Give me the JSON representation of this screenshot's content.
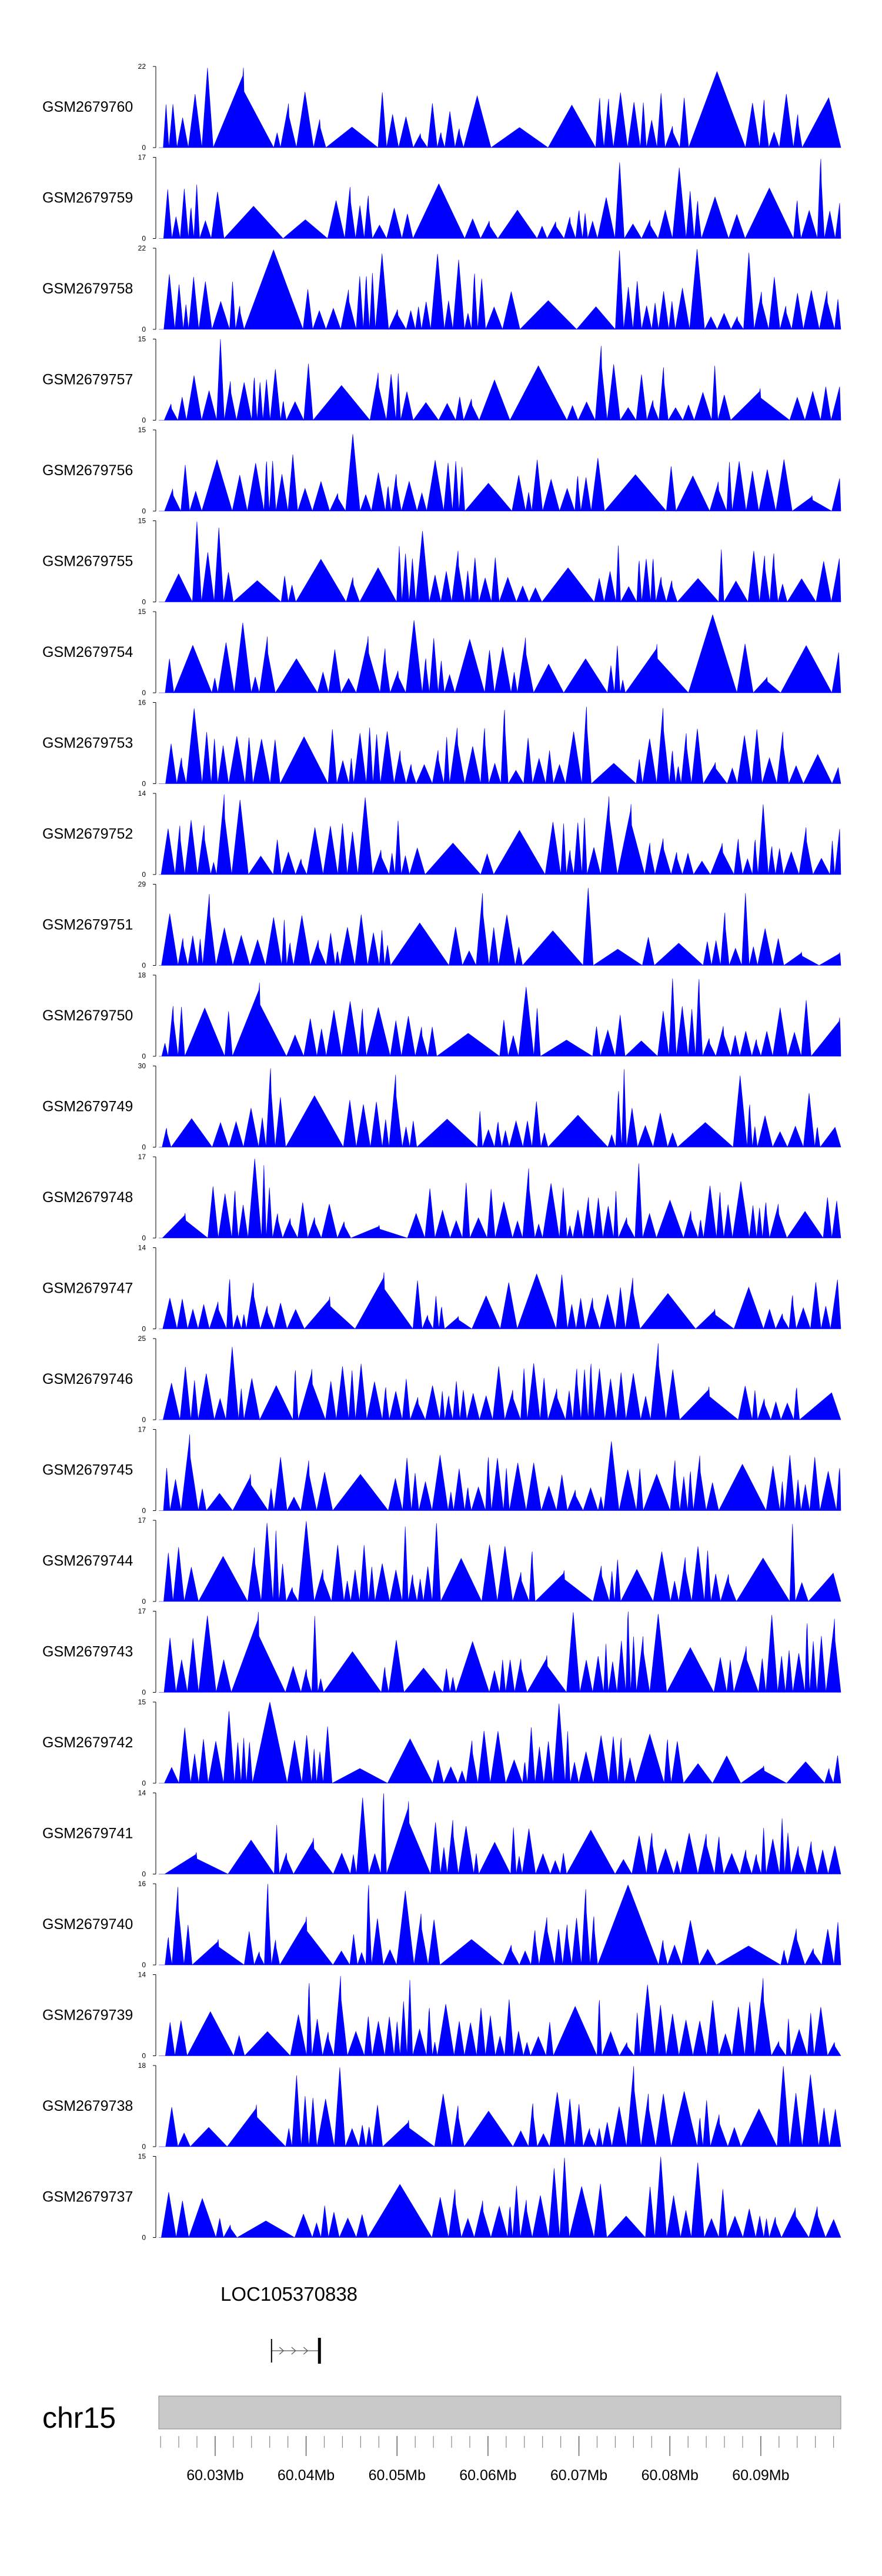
{
  "chart_data": {
    "type": "area",
    "tracks": [
      {
        "name": "GSM2679760",
        "ymax": 22,
        "ymin": 0
      },
      {
        "name": "GSM2679759",
        "ymax": 17,
        "ymin": 0
      },
      {
        "name": "GSM2679758",
        "ymax": 22,
        "ymin": 0
      },
      {
        "name": "GSM2679757",
        "ymax": 15,
        "ymin": 0
      },
      {
        "name": "GSM2679756",
        "ymax": 15,
        "ymin": 0
      },
      {
        "name": "GSM2679755",
        "ymax": 15,
        "ymin": 0
      },
      {
        "name": "GSM2679754",
        "ymax": 15,
        "ymin": 0
      },
      {
        "name": "GSM2679753",
        "ymax": 16,
        "ymin": 0
      },
      {
        "name": "GSM2679752",
        "ymax": 14,
        "ymin": 0
      },
      {
        "name": "GSM2679751",
        "ymax": 29,
        "ymin": 0
      },
      {
        "name": "GSM2679750",
        "ymax": 18,
        "ymin": 0
      },
      {
        "name": "GSM2679749",
        "ymax": 30,
        "ymin": 0
      },
      {
        "name": "GSM2679748",
        "ymax": 17,
        "ymin": 0
      },
      {
        "name": "GSM2679747",
        "ymax": 14,
        "ymin": 0
      },
      {
        "name": "GSM2679746",
        "ymax": 25,
        "ymin": 0
      },
      {
        "name": "GSM2679745",
        "ymax": 17,
        "ymin": 0
      },
      {
        "name": "GSM2679744",
        "ymax": 17,
        "ymin": 0
      },
      {
        "name": "GSM2679743",
        "ymax": 17,
        "ymin": 0
      },
      {
        "name": "GSM2679742",
        "ymax": 15,
        "ymin": 0
      },
      {
        "name": "GSM2679741",
        "ymax": 14,
        "ymin": 0
      },
      {
        "name": "GSM2679740",
        "ymax": 16,
        "ymin": 0
      },
      {
        "name": "GSM2679739",
        "ymax": 14,
        "ymin": 0
      },
      {
        "name": "GSM2679738",
        "ymax": 18,
        "ymin": 0
      },
      {
        "name": "GSM2679737",
        "ymax": 15,
        "ymin": 0
      }
    ],
    "fill_color": "#0000ff",
    "gene": {
      "name": "LOC105370838",
      "strand": "+",
      "start_mb": 60.0362,
      "end_mb": 60.0415
    },
    "chromosome": "chr15",
    "xlim_mb": [
      60.0238,
      60.0988
    ],
    "x_ticks": [
      "60.03Mb",
      "60.04Mb",
      "60.05Mb",
      "60.06Mb",
      "60.07Mb",
      "60.08Mb",
      "60.09Mb"
    ],
    "x_tick_values": [
      60.03,
      60.04,
      60.05,
      60.06,
      60.07,
      60.08,
      60.09
    ],
    "ideogram_color": "#c8c8c8"
  }
}
